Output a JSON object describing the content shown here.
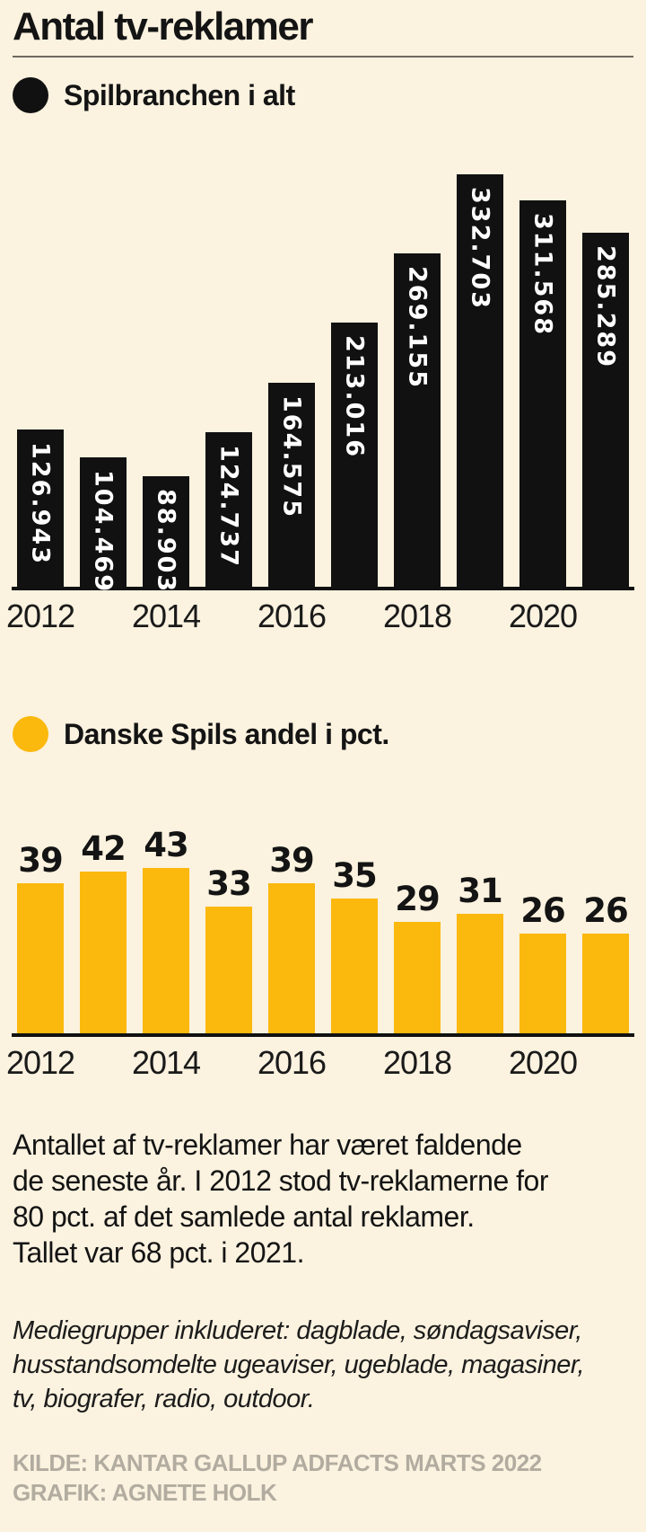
{
  "page": {
    "background": "#FBF2DF"
  },
  "header": {
    "title": "Antal tv-reklamer"
  },
  "chart_data": [
    {
      "type": "bar",
      "legend": "Spilbranchen i alt",
      "legend_color": "#111111",
      "categories": [
        "2012",
        "2013",
        "2014",
        "2015",
        "2016",
        "2017",
        "2018",
        "2019",
        "2020",
        "2021"
      ],
      "values": [
        126943,
        104469,
        88903,
        124737,
        164575,
        213016,
        269155,
        332703,
        311568,
        285289
      ],
      "value_labels": [
        "126.943",
        "104.469",
        "88.903",
        "124.737",
        "164.575",
        "213.016",
        "269.155",
        "332.703",
        "311.568",
        "285.289"
      ],
      "bar_color": "#111111",
      "value_label_color": "#FFFFFF",
      "value_label_position": "inside-top-vertical",
      "x_tick_labels": [
        "2012",
        "2014",
        "2016",
        "2018",
        "2020"
      ],
      "ylim": [
        0,
        350000
      ],
      "grid": false,
      "legend_position": "top-left"
    },
    {
      "type": "bar",
      "legend": "Danske Spils andel i pct.",
      "legend_color": "#FBB80D",
      "categories": [
        "2012",
        "2013",
        "2014",
        "2015",
        "2016",
        "2017",
        "2018",
        "2019",
        "2020",
        "2021"
      ],
      "values": [
        39,
        42,
        43,
        33,
        39,
        35,
        29,
        31,
        26,
        26
      ],
      "value_labels": [
        "39",
        "42",
        "43",
        "33",
        "39",
        "35",
        "29",
        "31",
        "26",
        "26"
      ],
      "bar_color": "#FBB80D",
      "value_label_color": "#141414",
      "value_label_position": "above",
      "x_tick_labels": [
        "2012",
        "2014",
        "2016",
        "2018",
        "2020"
      ],
      "ylim": [
        0,
        50
      ],
      "grid": false,
      "legend_position": "top-left"
    }
  ],
  "body_text": {
    "lines": [
      "Antallet af tv-reklamer har været faldende",
      "de seneste år. I 2012 stod tv-reklamerne for",
      "80 pct. af det samlede antal reklamer.",
      "Tallet var 68 pct. i 2021."
    ]
  },
  "note": {
    "lines": [
      "Mediegrupper inkluderet: dagblade, søndagsaviser,",
      "husstandsomdelte ugeaviser, ugeblade, magasiner,",
      "tv, biografer, radio, outdoor."
    ]
  },
  "source": {
    "lines": [
      "KILDE: KANTAR GALLUP ADFACTS MARTS 2022",
      "GRAFIK: AGNETE HOLK"
    ]
  }
}
